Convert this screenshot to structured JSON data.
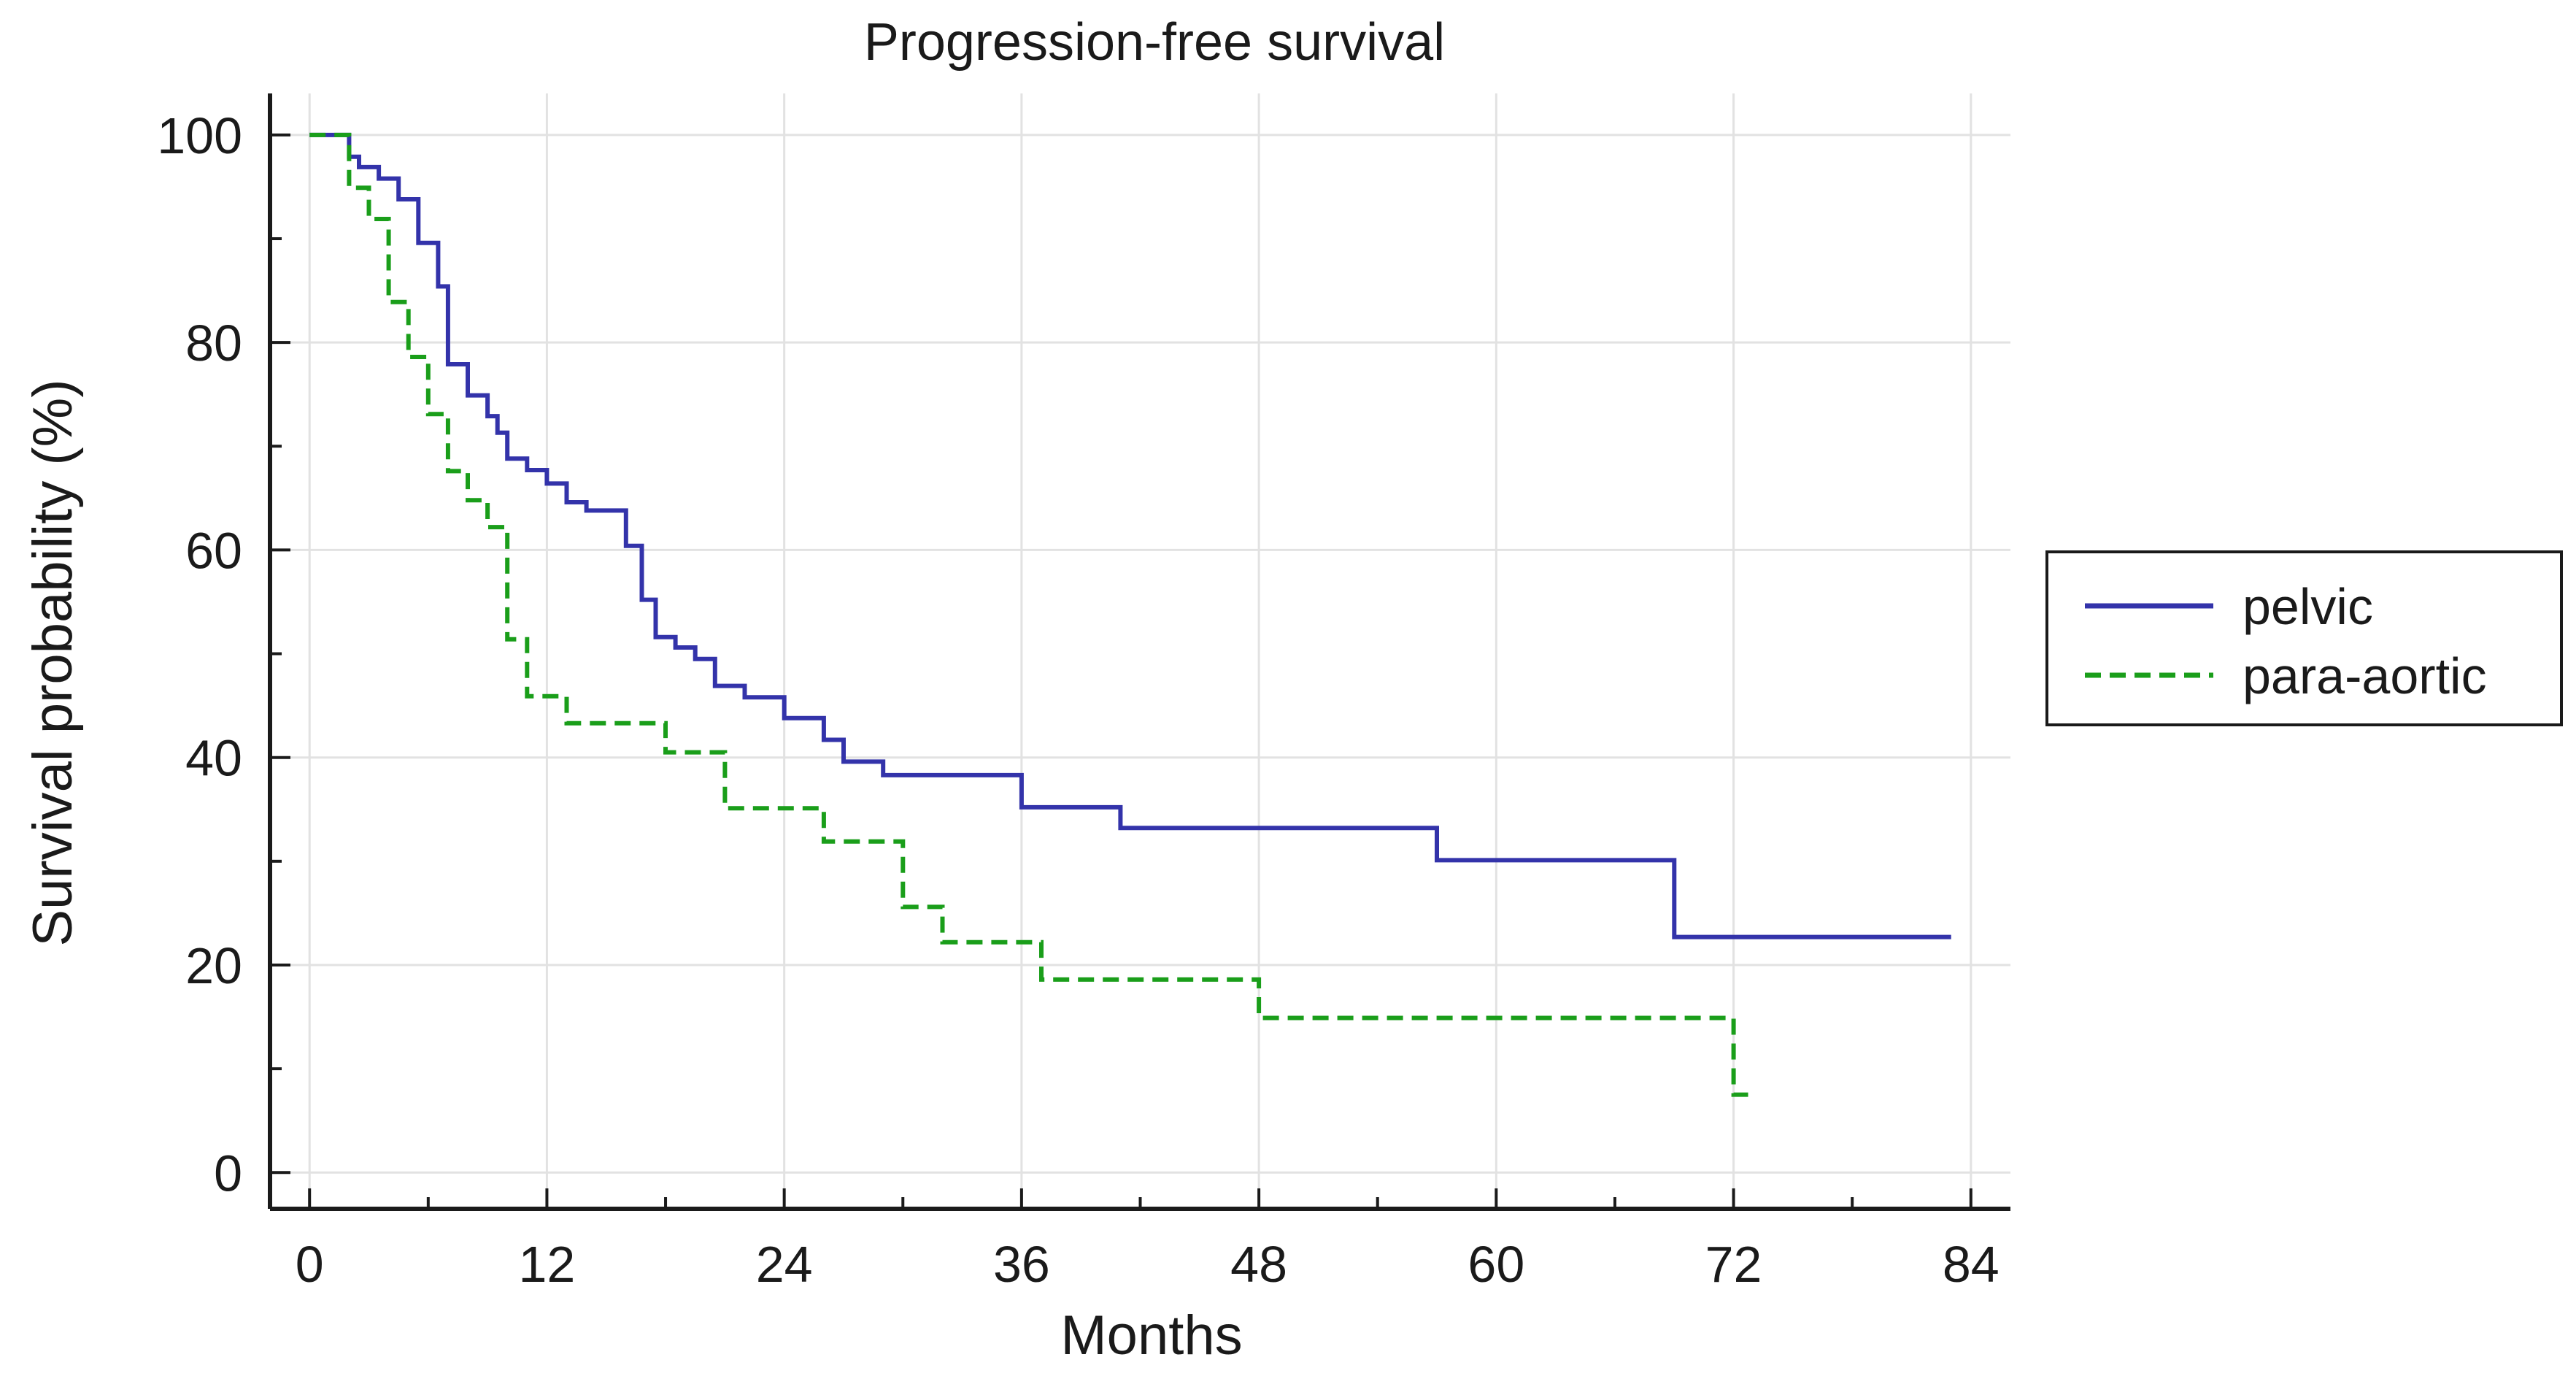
{
  "chart_data": {
    "type": "line",
    "step": true,
    "title": "Progression-free survival",
    "xlabel": "Months",
    "ylabel": "Survival probability (%)",
    "xlim": [
      -2,
      86
    ],
    "ylim": [
      -3.5,
      104
    ],
    "xticks": [
      0,
      12,
      24,
      36,
      48,
      60,
      72,
      84
    ],
    "yticks": [
      0,
      20,
      40,
      60,
      80,
      100
    ],
    "xtick_labels": [
      "0",
      "12",
      "24",
      "36",
      "48",
      "60",
      "72",
      "84"
    ],
    "ytick_labels": [
      "0",
      "20",
      "40",
      "60",
      "80",
      "100"
    ],
    "grid": true,
    "legend_position": "right",
    "series": [
      {
        "name": "pelvic",
        "color": "#3333aa",
        "dash": "solid",
        "points": [
          [
            0,
            100
          ],
          [
            2,
            100
          ],
          [
            2,
            97.9
          ],
          [
            2.5,
            96.9
          ],
          [
            3.5,
            95.8
          ],
          [
            4.5,
            93.8
          ],
          [
            5.5,
            89.6
          ],
          [
            6.5,
            85.4
          ],
          [
            7,
            85.4
          ],
          [
            7,
            77.9
          ],
          [
            8,
            74.9
          ],
          [
            9,
            72.9
          ],
          [
            9.5,
            71.3
          ],
          [
            10,
            68.8
          ],
          [
            11,
            67.7
          ],
          [
            12,
            66.4
          ],
          [
            13,
            64.6
          ],
          [
            14,
            63.8
          ],
          [
            16,
            60.4
          ],
          [
            16.8,
            55.2
          ],
          [
            17.5,
            51.6
          ],
          [
            18.5,
            50.6
          ],
          [
            19.5,
            49.5
          ],
          [
            20.5,
            46.9
          ],
          [
            22,
            45.8
          ],
          [
            24,
            43.8
          ],
          [
            26,
            41.7
          ],
          [
            27,
            39.6
          ],
          [
            29,
            38.3
          ],
          [
            36,
            35.2
          ],
          [
            41,
            33.2
          ],
          [
            57,
            30.1
          ],
          [
            69,
            22.7
          ],
          [
            83,
            22.7
          ]
        ]
      },
      {
        "name": "para-aortic",
        "color": "#1a9e1a",
        "dash": "dashed",
        "points": [
          [
            0,
            100
          ],
          [
            2,
            100
          ],
          [
            2,
            94.9
          ],
          [
            3,
            91.9
          ],
          [
            4,
            83.9
          ],
          [
            5,
            78.6
          ],
          [
            6,
            73.1
          ],
          [
            7,
            67.6
          ],
          [
            8,
            64.8
          ],
          [
            9,
            62.2
          ],
          [
            10,
            51.4
          ],
          [
            11,
            45.9
          ],
          [
            13,
            43.3
          ],
          [
            18,
            40.5
          ],
          [
            21,
            35.1
          ],
          [
            26,
            31.9
          ],
          [
            30,
            25.6
          ],
          [
            32,
            22.2
          ],
          [
            37,
            18.6
          ],
          [
            48,
            14.9
          ],
          [
            72,
            14.9
          ],
          [
            72,
            7.5
          ],
          [
            73,
            7.5
          ]
        ]
      }
    ]
  }
}
